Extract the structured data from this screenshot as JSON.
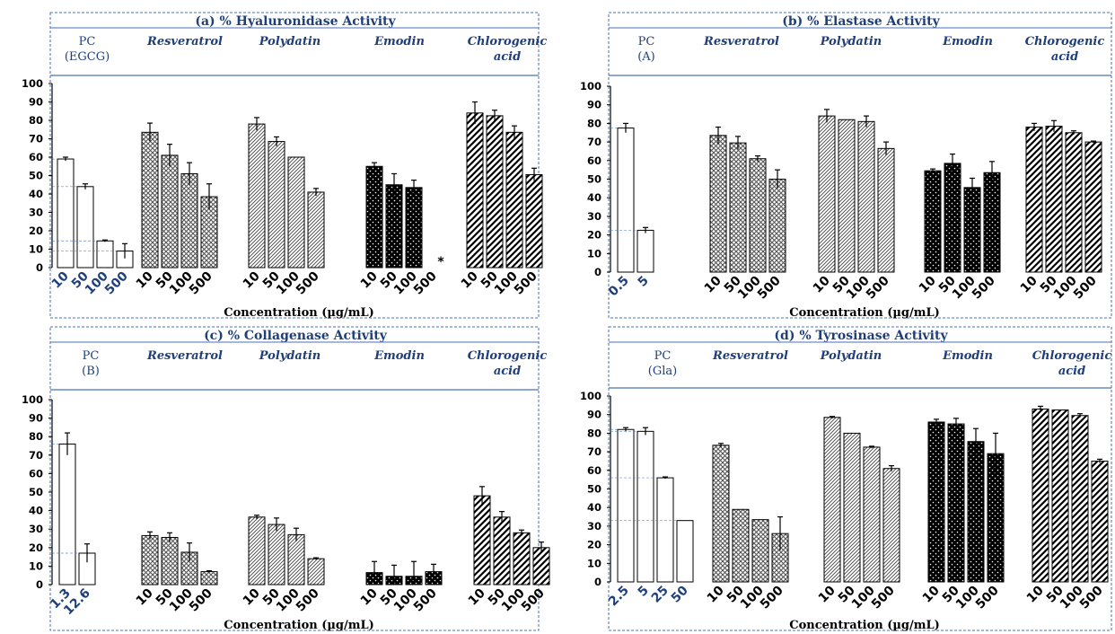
{
  "figure": {
    "xlabel": "Concentration (µg/mL)",
    "colors": {
      "frame": "#4a72b8",
      "text": "#1f3f7a",
      "ink": "#000000"
    },
    "group_patterns": [
      "open",
      "crosshatch",
      "fine-diagonal",
      "dotted-black",
      "bold-diagonal"
    ]
  },
  "chart_data": [
    {
      "type": "bar",
      "title": "(a) % Hyaluronidase Activity",
      "xlabel": "Concentration (µg/mL)",
      "ylabel": "",
      "ylim": [
        0,
        100
      ],
      "yticks": [
        0,
        10,
        20,
        30,
        40,
        50,
        60,
        70,
        80,
        90,
        100
      ],
      "groups": [
        {
          "name": "PC\n(EGCG)",
          "categories": [
            "10",
            "50",
            "100",
            "500"
          ],
          "values": [
            59,
            44,
            14.5,
            9
          ],
          "errors": [
            1,
            1.5,
            0.5,
            4
          ]
        },
        {
          "name": "Resveratrol",
          "categories": [
            "10",
            "50",
            "100",
            "500"
          ],
          "values": [
            73.5,
            61,
            51,
            38.5
          ],
          "errors": [
            5,
            6,
            6,
            7
          ]
        },
        {
          "name": "Polydatin",
          "categories": [
            "10",
            "50",
            "100",
            "500"
          ],
          "values": [
            78,
            68.5,
            60,
            41
          ],
          "errors": [
            3.5,
            2.5,
            0,
            2
          ]
        },
        {
          "name": "Emodin",
          "categories": [
            "10",
            "50",
            "100",
            "500"
          ],
          "values": [
            55,
            45,
            43.5,
            0
          ],
          "errors": [
            2,
            6,
            4,
            0
          ],
          "annotations": [
            {
              "category": "500",
              "text": "*"
            }
          ]
        },
        {
          "name": "Chlorogenic\nacid",
          "categories": [
            "10",
            "50",
            "100",
            "500"
          ],
          "values": [
            84,
            82.5,
            73.5,
            50.5
          ],
          "errors": [
            6,
            3,
            3.5,
            3.5
          ]
        }
      ]
    },
    {
      "type": "bar",
      "title": "(b) % Elastase Activity",
      "xlabel": "Concentration (µg/mL)",
      "ylabel": "",
      "ylim": [
        0,
        100
      ],
      "yticks": [
        0,
        10,
        20,
        30,
        40,
        50,
        60,
        70,
        80,
        90,
        100
      ],
      "groups": [
        {
          "name": "PC\n(A)",
          "categories": [
            "0.5",
            "5"
          ],
          "values": [
            77.5,
            22.5
          ],
          "errors": [
            2.5,
            1.5
          ]
        },
        {
          "name": "Resveratrol",
          "categories": [
            "10",
            "50",
            "100",
            "500"
          ],
          "values": [
            73.5,
            69.5,
            61,
            50
          ],
          "errors": [
            4.5,
            3.5,
            1.5,
            5
          ]
        },
        {
          "name": "Polydatin",
          "categories": [
            "10",
            "50",
            "100",
            "500"
          ],
          "values": [
            84,
            82,
            81,
            66.5
          ],
          "errors": [
            3.5,
            0,
            3,
            3.5
          ]
        },
        {
          "name": "Emodin",
          "categories": [
            "10",
            "50",
            "100",
            "500"
          ],
          "values": [
            54.5,
            58.5,
            45.5,
            53.5
          ],
          "errors": [
            1,
            5,
            5,
            6
          ]
        },
        {
          "name": "Chlorogenic\nacid",
          "categories": [
            "10",
            "50",
            "100",
            "500"
          ],
          "values": [
            78,
            78.5,
            75,
            70
          ],
          "errors": [
            2,
            3,
            1,
            0.5
          ]
        }
      ]
    },
    {
      "type": "bar",
      "title": "(c) % Collagenase Activity",
      "xlabel": "Concentration (µg/mL)",
      "ylabel": "",
      "ylim": [
        0,
        100
      ],
      "yticks": [
        0,
        10,
        20,
        30,
        40,
        50,
        60,
        70,
        80,
        90,
        100
      ],
      "groups": [
        {
          "name": "PC\n(B)",
          "categories": [
            "1.3",
            "12.6"
          ],
          "values": [
            76,
            17
          ],
          "errors": [
            6,
            5
          ]
        },
        {
          "name": "Resveratrol",
          "categories": [
            "10",
            "50",
            "100",
            "500"
          ],
          "values": [
            26.5,
            25.5,
            17.5,
            7
          ],
          "errors": [
            2,
            2.5,
            5,
            0.5
          ]
        },
        {
          "name": "Polydatin",
          "categories": [
            "10",
            "50",
            "100",
            "500"
          ],
          "values": [
            36.5,
            32.5,
            27,
            14
          ],
          "errors": [
            1,
            3.5,
            3.5,
            0.5
          ]
        },
        {
          "name": "Emodin",
          "categories": [
            "10",
            "50",
            "100",
            "500"
          ],
          "values": [
            6.5,
            4.5,
            4.5,
            7
          ],
          "errors": [
            6,
            6,
            8,
            4
          ]
        },
        {
          "name": "Chlorogenic\nacid",
          "categories": [
            "10",
            "50",
            "100",
            "500"
          ],
          "values": [
            48,
            36.5,
            28,
            20
          ],
          "errors": [
            5,
            3,
            1.5,
            3
          ]
        }
      ]
    },
    {
      "type": "bar",
      "title": "(d) % Tyrosinase Activity",
      "xlabel": "Concentration (µg/mL)",
      "ylabel": "",
      "ylim": [
        0,
        100
      ],
      "yticks": [
        0,
        10,
        20,
        30,
        40,
        50,
        60,
        70,
        80,
        90,
        100
      ],
      "groups": [
        {
          "name": "PC\n(Gla)",
          "categories": [
            "2.5",
            "5",
            "25",
            "50"
          ],
          "values": [
            82,
            81,
            56,
            33
          ],
          "errors": [
            1,
            2,
            0.5,
            0
          ]
        },
        {
          "name": "Resveratrol",
          "categories": [
            "10",
            "50",
            "100",
            "500"
          ],
          "values": [
            73.5,
            39,
            33.5,
            26
          ],
          "errors": [
            1,
            0,
            0,
            9
          ]
        },
        {
          "name": "Polydatin",
          "categories": [
            "10",
            "50",
            "100",
            "500"
          ],
          "values": [
            88.5,
            80,
            72.5,
            61
          ],
          "errors": [
            0.5,
            0,
            0.5,
            1.5
          ]
        },
        {
          "name": "Emodin",
          "categories": [
            "10",
            "50",
            "100",
            "500"
          ],
          "values": [
            86,
            85,
            75.5,
            69
          ],
          "errors": [
            1.5,
            3,
            7,
            11
          ]
        },
        {
          "name": "Chlorogenic\nacid",
          "categories": [
            "10",
            "50",
            "100",
            "500"
          ],
          "values": [
            93,
            92.5,
            89.5,
            65
          ],
          "errors": [
            1.5,
            0,
            1,
            1
          ]
        }
      ]
    }
  ]
}
